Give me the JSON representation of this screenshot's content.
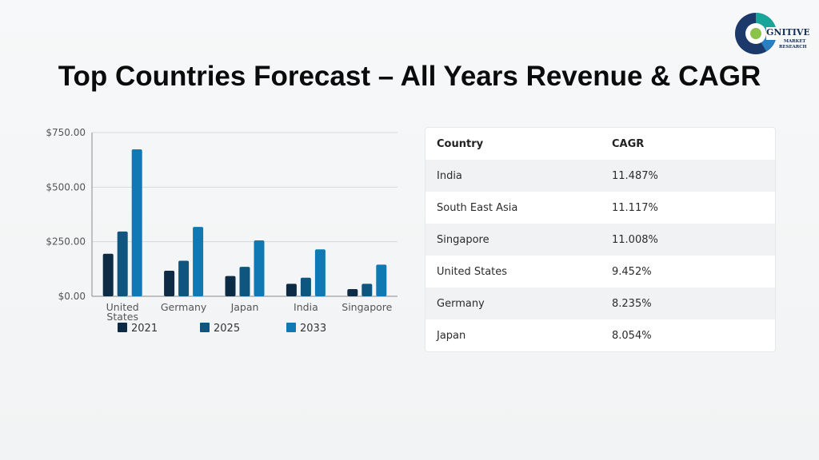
{
  "title": "Top Countries Forecast – All Years Revenue & CAGR",
  "logo": {
    "line1": "GNITIVE",
    "line2": "MARKET",
    "line3": "RESEARCH"
  },
  "colors": {
    "s2021": "#0d2b45",
    "s2025": "#0e5580",
    "s2033": "#1079b3"
  },
  "chart_data": {
    "type": "bar",
    "categories": [
      "United States",
      "Germany",
      "Japan",
      "India",
      "Singapore"
    ],
    "series": [
      {
        "name": "2021",
        "values": [
          195,
          117,
          93,
          57,
          33
        ]
      },
      {
        "name": "2025",
        "values": [
          297,
          163,
          135,
          85,
          57
        ]
      },
      {
        "name": "2033",
        "values": [
          673,
          318,
          256,
          215,
          145
        ]
      }
    ],
    "yticks": [
      "$0.00",
      "$250.00",
      "$500.00",
      "$750.00"
    ],
    "ytick_values": [
      0,
      250,
      500,
      750
    ],
    "ylim": [
      0,
      750
    ],
    "legend_position": "bottom",
    "grid": true
  },
  "table": {
    "headers": [
      "Country",
      "CAGR"
    ],
    "rows": [
      [
        "India",
        "11.487%"
      ],
      [
        "South East Asia",
        "11.117%"
      ],
      [
        "Singapore",
        "11.008%"
      ],
      [
        "United States",
        "9.452%"
      ],
      [
        "Germany",
        "8.235%"
      ],
      [
        "Japan",
        "8.054%"
      ]
    ]
  }
}
